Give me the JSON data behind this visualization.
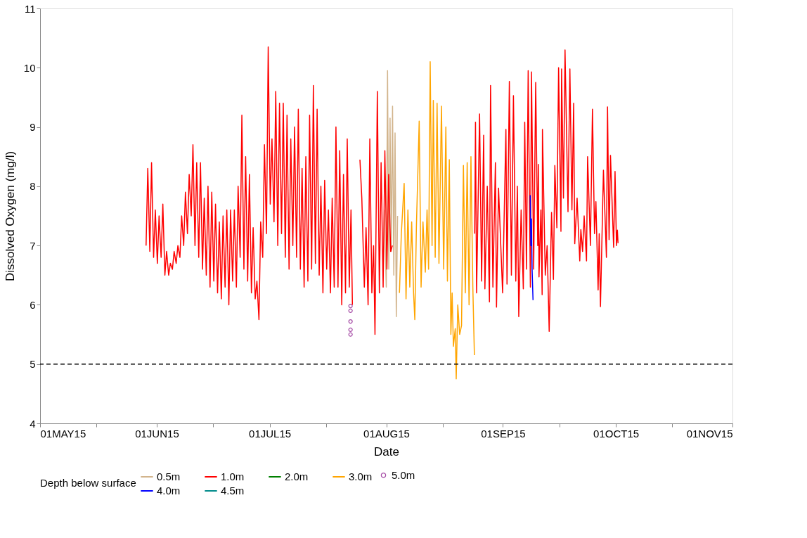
{
  "chart_data": {
    "type": "line",
    "xlabel": "Date",
    "ylabel": "Dissolved Oxygen (mg/l)",
    "legend_title": "Depth below surface",
    "legend": "bottom",
    "grid": false,
    "xlim": [
      "2015-05-01",
      "2015-11-01"
    ],
    "xticks": [
      {
        "value": "2015-05-01",
        "label": "01MAY15"
      },
      {
        "value": "2015-05-16",
        "label": null
      },
      {
        "value": "2015-06-01",
        "label": "01JUN15"
      },
      {
        "value": "2015-06-16",
        "label": null
      },
      {
        "value": "2015-07-01",
        "label": "01JUL15"
      },
      {
        "value": "2015-07-16",
        "label": null
      },
      {
        "value": "2015-08-01",
        "label": "01AUG15"
      },
      {
        "value": "2015-08-16",
        "label": null
      },
      {
        "value": "2015-09-01",
        "label": "01SEP15"
      },
      {
        "value": "2015-09-16",
        "label": null
      },
      {
        "value": "2015-10-01",
        "label": "01OCT15"
      },
      {
        "value": "2015-10-16",
        "label": null
      },
      {
        "value": "2015-11-01",
        "label": "01NOV15"
      }
    ],
    "ylim": [
      4,
      11
    ],
    "yticks": [
      4,
      5,
      6,
      7,
      8,
      9,
      10,
      11
    ],
    "ref_lines": [
      {
        "axis": "y",
        "value": 5,
        "color": "#000000",
        "line_style": "dashed"
      }
    ],
    "series": [
      {
        "name": "0.5m",
        "color": "#d2b48c",
        "x": [
          "2015-07-31T12:00",
          "2015-08-01T00:00",
          "2015-08-01T08:00",
          "2015-08-01T16:00",
          "2015-08-02T00:00",
          "2015-08-02T08:00",
          "2015-08-02T16:00",
          "2015-08-03T00:00",
          "2015-08-03T08:00",
          "2015-08-03T16:00",
          "2015-08-04T00:00"
        ],
        "values": [
          7.6,
          6.3,
          9.95,
          6.6,
          9.15,
          6.9,
          9.35,
          6.5,
          8.9,
          5.8,
          7.5
        ]
      },
      {
        "name": "1.0m",
        "color": "#ff0000",
        "x": [
          "2015-05-29T04:00",
          "2015-05-29T15:00",
          "2015-05-30T04:00",
          "2015-05-30T15:00",
          "2015-05-31T04:00",
          "2015-05-31T15:00",
          "2015-06-01T04:00",
          "2015-06-01T15:00",
          "2015-06-02T04:00",
          "2015-06-02T15:00",
          "2015-06-03T04:00",
          "2015-06-03T15:00",
          "2015-06-04T04:00",
          "2015-06-04T15:00",
          "2015-06-05T04:00",
          "2015-06-05T15:00",
          "2015-06-06T04:00",
          "2015-06-06T15:00",
          "2015-06-07T04:00",
          "2015-06-07T15:00",
          "2015-06-08T04:00",
          "2015-06-08T15:00",
          "2015-06-09T04:00",
          "2015-06-09T15:00",
          "2015-06-10T04:00",
          "2015-06-10T15:00",
          "2015-06-11T04:00",
          "2015-06-11T15:00",
          "2015-06-12T04:00",
          "2015-06-12T15:00",
          "2015-06-13T04:00",
          "2015-06-13T15:00",
          "2015-06-14T04:00",
          "2015-06-14T15:00",
          "2015-06-15T04:00",
          "2015-06-15T15:00",
          "2015-06-16T04:00",
          "2015-06-16T15:00",
          "2015-06-17T04:00",
          "2015-06-17T15:00",
          "2015-06-18T04:00",
          "2015-06-18T15:00",
          "2015-06-19T04:00",
          "2015-06-19T15:00",
          "2015-06-20T04:00",
          "2015-06-20T15:00",
          "2015-06-21T04:00",
          "2015-06-21T15:00",
          "2015-06-22T04:00",
          "2015-06-22T15:00",
          "2015-06-23T04:00",
          "2015-06-23T15:00",
          "2015-06-24T04:00",
          "2015-06-24T15:00",
          "2015-06-25T04:00",
          "2015-06-25T15:00",
          "2015-06-26T04:00",
          "2015-06-26T15:00",
          "2015-06-27T04:00",
          "2015-06-27T15:00",
          "2015-06-28T04:00",
          "2015-06-28T15:00",
          "2015-06-29T04:00",
          "2015-06-29T15:00",
          "2015-06-30T04:00",
          "2015-06-30T15:00",
          "2015-07-01T04:00",
          "2015-07-01T15:00",
          "2015-07-02T04:00",
          "2015-07-02T15:00",
          "2015-07-03T04:00",
          "2015-07-03T15:00",
          "2015-07-04T04:00",
          "2015-07-04T15:00",
          "2015-07-05T04:00",
          "2015-07-05T15:00",
          "2015-07-06T04:00",
          "2015-07-06T15:00",
          "2015-07-07T04:00",
          "2015-07-07T15:00",
          "2015-07-08T04:00",
          "2015-07-08T15:00",
          "2015-07-09T04:00",
          "2015-07-09T15:00",
          "2015-07-10T04:00",
          "2015-07-10T15:00",
          "2015-07-11T04:00",
          "2015-07-11T15:00",
          "2015-07-12T04:00",
          "2015-07-12T15:00",
          "2015-07-13T04:00",
          "2015-07-13T15:00",
          "2015-07-14T04:00",
          "2015-07-14T15:00",
          "2015-07-15T04:00",
          "2015-07-15T15:00",
          "2015-07-16T04:00",
          "2015-07-16T15:00",
          "2015-07-17T04:00",
          "2015-07-17T15:00",
          "2015-07-18T04:00",
          "2015-07-18T15:00",
          "2015-07-19T04:00",
          "2015-07-19T15:00",
          "2015-07-20T04:00",
          "2015-07-20T15:00",
          "2015-07-21T04:00",
          "2015-07-21T15:00",
          "2015-07-22T04:00",
          "2015-07-22T15:00",
          "2015-07-23T00:00",
          "2015-07-24T00:00",
          "2015-07-25T00:00",
          "2015-07-25T12:00",
          "2015-07-26T04:00",
          "2015-07-26T15:00",
          "2015-07-27T04:00",
          "2015-07-27T15:00",
          "2015-07-28T04:00",
          "2015-07-28T15:00",
          "2015-07-29T00:00",
          "2015-07-29T15:00",
          "2015-07-30T04:00",
          "2015-07-30T15:00",
          "2015-07-31T04:00",
          "2015-07-31T15:00",
          "2015-08-01T04:00",
          "2015-08-01T15:00",
          "2015-08-02T04:00",
          "2015-08-02T15:00",
          "2015-08-03T00:00",
          "2015-08-24T12:00",
          "2015-08-24T17:00",
          "2015-08-25T00:00",
          "2015-08-25T19:00",
          "2015-08-26T08:00",
          "2015-08-26T21:00",
          "2015-08-27T05:00",
          "2015-08-27T20:00",
          "2015-08-28T10:00",
          "2015-08-28T17:00",
          "2015-08-29T08:00",
          "2015-08-30T00:00",
          "2015-08-30T07:00",
          "2015-08-30T20:00",
          "2015-08-31T22:00",
          "2015-09-01T19:00",
          "2015-09-02T02:00",
          "2015-09-02T17:00",
          "2015-09-03T06:00",
          "2015-09-03T19:00",
          "2015-09-04T10:00",
          "2015-09-04T20:00",
          "2015-09-05T05:00",
          "2015-09-05T20:00",
          "2015-09-06T10:00",
          "2015-09-06T19:00",
          "2015-09-07T06:00",
          "2015-09-07T17:00",
          "2015-09-08T07:00",
          "2015-09-08T14:00",
          "2015-09-09T04:00",
          "2015-09-09T17:00",
          "2015-09-10T06:00",
          "2015-09-10T10:00",
          "2015-09-10T14:00",
          "2015-09-11T02:00",
          "2015-09-11T10:00",
          "2015-09-11T12:00",
          "2015-09-12T06:00",
          "2015-09-12T18:00",
          "2015-09-13T07:00",
          "2015-09-13T22:00",
          "2015-09-14T10:00",
          "2015-09-14T19:00",
          "2015-09-15T08:00",
          "2015-09-15T19:00",
          "2015-09-16T10:00",
          "2015-09-16T14:00",
          "2015-09-17T02:00",
          "2015-09-17T12:00",
          "2015-09-18T07:00",
          "2015-09-18T19:00",
          "2015-09-19T08:00",
          "2015-09-19T19:00",
          "2015-09-20T02:00",
          "2015-09-20T17:00",
          "2015-09-21T10:00",
          "2015-09-21T17:00",
          "2015-09-22T04:00",
          "2015-09-22T14:00",
          "2015-09-23T05:00",
          "2015-09-23T12:00",
          "2015-09-24T06:00",
          "2015-09-24T19:00",
          "2015-09-25T08:00",
          "2015-09-25T17:00",
          "2015-09-26T07:00",
          "2015-09-26T14:00",
          "2015-09-26T22:00",
          "2015-09-27T17:00",
          "2015-09-28T12:00",
          "2015-09-28T19:00",
          "2015-09-29T05:00",
          "2015-09-29T14:00",
          "2015-09-30T10:00",
          "2015-09-30T19:00",
          "2015-10-01T04:00",
          "2015-10-01T10:00",
          "2015-10-01T14:00"
        ],
        "values": [
          7.0,
          8.3,
          6.9,
          8.4,
          6.8,
          7.6,
          6.7,
          7.5,
          6.8,
          7.7,
          6.5,
          6.9,
          6.5,
          6.7,
          6.6,
          6.9,
          6.7,
          7.0,
          6.8,
          7.5,
          7.0,
          7.9,
          7.2,
          8.2,
          7.5,
          8.7,
          7.0,
          8.4,
          6.8,
          8.4,
          6.6,
          7.8,
          6.5,
          8.0,
          6.3,
          7.9,
          6.4,
          7.7,
          6.2,
          7.4,
          6.1,
          7.5,
          6.3,
          7.6,
          6.0,
          7.6,
          6.4,
          7.6,
          6.3,
          8.0,
          6.8,
          9.2,
          6.6,
          8.5,
          6.4,
          8.2,
          6.2,
          7.3,
          6.1,
          6.4,
          5.75,
          7.4,
          6.8,
          8.7,
          7.2,
          10.35,
          7.7,
          8.8,
          7.4,
          9.6,
          7.0,
          9.4,
          7.2,
          9.4,
          6.8,
          9.2,
          6.6,
          8.8,
          7.0,
          9.0,
          6.8,
          9.3,
          6.6,
          8.3,
          6.3,
          8.5,
          6.4,
          9.2,
          6.6,
          9.7,
          6.7,
          9.3,
          6.5,
          8.0,
          6.2,
          8.1,
          6.6,
          7.6,
          6.2,
          7.8,
          6.3,
          9.0,
          6.3,
          8.6,
          6.0,
          8.2,
          6.2,
          8.8,
          6.3,
          7.6,
          6.0,
          null,
          8.45,
          7.8,
          6.3,
          7.3,
          6.0,
          8.8,
          6.2,
          7.0,
          5.5,
          9.6,
          6.2,
          8.4,
          6.3,
          8.6,
          6.6,
          8.2,
          6.9,
          7.0,
          null,
          7.2,
          9.08,
          6.2,
          9.22,
          6.4,
          8.86,
          6.27,
          8.0,
          6.05,
          9.7,
          6.3,
          8.4,
          5.96,
          7.97,
          6.2,
          8.96,
          6.35,
          9.77,
          6.5,
          9.53,
          6.4,
          8.0,
          5.8,
          7.6,
          6.27,
          9.08,
          6.6,
          9.95,
          6.3,
          9.93,
          6.6,
          9.75,
          7.0,
          8.37,
          6.47,
          7.6,
          6.17,
          8.96,
          6.5,
          7.0,
          5.55,
          7.56,
          6.43,
          8.35,
          7.3,
          10.0,
          7.24,
          9.98,
          7.8,
          10.3,
          7.57,
          9.98,
          7.6,
          9.4,
          7.03,
          7.8,
          6.74,
          7.27,
          6.9,
          7.5,
          6.74,
          8.5,
          7.0,
          9.3,
          7.2,
          7.74,
          6.25,
          7.2,
          5.97,
          8.27,
          6.8,
          9.34,
          7.1,
          8.52,
          6.97,
          8.25,
          7.0,
          7.26,
          7.04
        ]
      },
      {
        "name": "2.0m",
        "color": "#008000"
      },
      {
        "name": "3.0m",
        "color": "#ffa500",
        "x": [
          "2015-08-04T12:00",
          "2015-08-05T00:00",
          "2015-08-05T18:00",
          "2015-08-06T06:00",
          "2015-08-06T18:00",
          "2015-08-07T06:00",
          "2015-08-07T18:00",
          "2015-08-08T06:00",
          "2015-08-08T14:00",
          "2015-08-09T00:00",
          "2015-08-09T18:00",
          "2015-08-10T06:00",
          "2015-08-10T18:00",
          "2015-08-11T09:00",
          "2015-08-11T20:00",
          "2015-08-12T06:00",
          "2015-08-12T16:00",
          "2015-08-13T04:00",
          "2015-08-13T12:00",
          "2015-08-14T00:00",
          "2015-08-14T12:00",
          "2015-08-15T00:00",
          "2015-08-15T16:00",
          "2015-08-16T06:00",
          "2015-08-16T20:00",
          "2015-08-17T06:00",
          "2015-08-17T18:00",
          "2015-08-18T04:00",
          "2015-08-18T12:00",
          "2015-08-18T20:00",
          "2015-08-19T08:00",
          "2015-08-19T14:00",
          "2015-08-20T00:00",
          "2015-08-20T12:00",
          "2015-08-21T00:00",
          "2015-08-21T12:00",
          "2015-08-22T00:00",
          "2015-08-22T12:00",
          "2015-08-23T00:00",
          "2015-08-23T12:00",
          "2015-08-24T00:00",
          "2015-08-24T10:00"
        ],
        "values": [
          6.2,
          7.2,
          8.05,
          6.1,
          7.6,
          6.3,
          7.4,
          6.2,
          5.75,
          7.3,
          9.1,
          6.3,
          7.4,
          6.55,
          7.6,
          6.6,
          10.1,
          7.0,
          9.45,
          6.8,
          9.4,
          6.7,
          9.35,
          6.6,
          9.0,
          6.4,
          8.45,
          5.5,
          6.2,
          5.3,
          5.6,
          4.75,
          6.0,
          5.5,
          5.65,
          8.35,
          6.2,
          8.4,
          6.0,
          8.5,
          6.3,
          5.15
        ]
      },
      {
        "name": "4.0m",
        "color": "#0000ff",
        "x": [
          "2015-09-08T06:00",
          "2015-09-08T10:00",
          "2015-09-08T14:00",
          "2015-09-08T18:00",
          "2015-09-09T00:00"
        ],
        "values": [
          7.85,
          7.0,
          7.45,
          6.6,
          6.08
        ]
      },
      {
        "name": "4.5m",
        "color": "#008b8b"
      },
      {
        "name": "5.0m",
        "color": "#800080",
        "type": "scatter",
        "marker": "circle",
        "x": [
          "2015-07-22T12:00",
          "2015-07-22T12:00",
          "2015-07-22T12:00",
          "2015-07-22T12:00",
          "2015-07-22T12:00"
        ],
        "values": [
          5.98,
          5.9,
          5.72,
          5.58,
          5.5
        ]
      }
    ]
  }
}
